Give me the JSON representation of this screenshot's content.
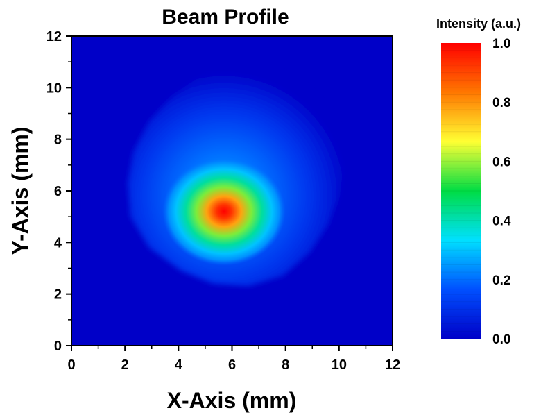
{
  "chart_data": {
    "type": "heatmap",
    "title": "Beam Profile",
    "xlabel": "X-Axis (mm)",
    "ylabel": "Y-Axis (mm)",
    "xlim": [
      0,
      12
    ],
    "ylim": [
      0,
      12
    ],
    "xticks": [
      "0",
      "2",
      "4",
      "6",
      "8",
      "10",
      "12"
    ],
    "yticks": [
      "0",
      "2",
      "4",
      "6",
      "8",
      "10",
      "12"
    ],
    "colorbar": {
      "title": "Intensity (a.u.)",
      "range": [
        0.0,
        1.0
      ],
      "ticks": [
        "0.0",
        "0.2",
        "0.4",
        "0.6",
        "0.8",
        "1.0"
      ],
      "colormap": [
        "#0000c8",
        "#0050ff",
        "#00e0ff",
        "#00dd44",
        "#ffff33",
        "#ff7700",
        "#ff0000"
      ]
    },
    "peak": {
      "x": 5.7,
      "y": 5.2,
      "value": 1.0
    },
    "background_value": 0.0
  }
}
